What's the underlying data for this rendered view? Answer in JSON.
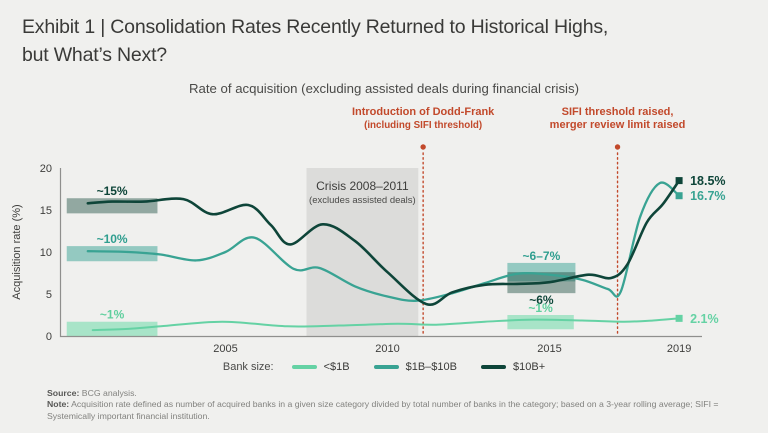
{
  "title": {
    "line1": "Exhibit 1 | Consolidation Rates Recently Returned to Historical Highs,",
    "line2": "but What’s Next?"
  },
  "chart_data": {
    "type": "line",
    "title": "Rate of acquisition (excluding assisted deals during financial crisis)",
    "ylabel": "Acquisition rate (%)",
    "ylim": [
      0,
      20
    ],
    "y_ticks": [
      0,
      5,
      10,
      15,
      20
    ],
    "x_ticks": [
      2005,
      2010,
      2015,
      2019
    ],
    "x_range": [
      2000,
      2019.8
    ],
    "grid": false,
    "legend_position": "bottom",
    "legend_label": "Bank size:",
    "background_color": "#f0f0ee",
    "event_color": "#c2492b",
    "series": [
      {
        "name": "<$1B",
        "color": "#65d2a4",
        "end_label": "2.1%",
        "points": [
          [
            2000.9,
            0.7
          ],
          [
            2002,
            0.85
          ],
          [
            2003,
            1.15
          ],
          [
            2004.9,
            1.7
          ],
          [
            2006.9,
            1.15
          ],
          [
            2008.5,
            1.25
          ],
          [
            2010.3,
            1.45
          ],
          [
            2011.5,
            1.35
          ],
          [
            2013,
            1.7
          ],
          [
            2014.5,
            1.95
          ],
          [
            2016,
            1.85
          ],
          [
            2017.3,
            1.7
          ],
          [
            2018.2,
            1.85
          ],
          [
            2019,
            2.1
          ]
        ]
      },
      {
        "name": "$1B–$10B",
        "color": "#39a393",
        "end_label": "16.7%",
        "points": [
          [
            2000.75,
            10.1
          ],
          [
            2002,
            10.0
          ],
          [
            2003,
            9.7
          ],
          [
            2004.1,
            9.0
          ],
          [
            2005,
            10.0
          ],
          [
            2005.9,
            11.7
          ],
          [
            2007.1,
            8.0
          ],
          [
            2007.9,
            8.1
          ],
          [
            2009,
            5.9
          ],
          [
            2010,
            4.7
          ],
          [
            2010.9,
            4.2
          ],
          [
            2012,
            5.1
          ],
          [
            2013,
            6.3
          ],
          [
            2014,
            7.4
          ],
          [
            2015,
            7.3
          ],
          [
            2016,
            6.7
          ],
          [
            2016.8,
            5.6
          ],
          [
            2017.2,
            5.3
          ],
          [
            2017.8,
            14.2
          ],
          [
            2018.4,
            18.2
          ],
          [
            2019,
            16.7
          ]
        ]
      },
      {
        "name": "$10B+",
        "color": "#0e4539",
        "end_label": "18.5%",
        "points": [
          [
            2000.75,
            15.8
          ],
          [
            2001.5,
            16.0
          ],
          [
            2002.5,
            16.0
          ],
          [
            2003.7,
            16.3
          ],
          [
            2004.6,
            14.5
          ],
          [
            2005.7,
            15.6
          ],
          [
            2006.4,
            13.2
          ],
          [
            2007.0,
            10.9
          ],
          [
            2008.0,
            13.3
          ],
          [
            2009.0,
            11.3
          ],
          [
            2010.0,
            7.6
          ],
          [
            2011.2,
            3.8
          ],
          [
            2012,
            5.2
          ],
          [
            2013,
            6.1
          ],
          [
            2014,
            6.2
          ],
          [
            2015,
            6.4
          ],
          [
            2016.2,
            7.3
          ],
          [
            2016.9,
            6.9
          ],
          [
            2017.4,
            8.5
          ],
          [
            2018,
            13.5
          ],
          [
            2018.5,
            15.7
          ],
          [
            2019,
            18.5
          ]
        ]
      }
    ],
    "crisis_region": {
      "label": "Crisis 2008–2011",
      "sublabel": "(excludes assisted deals)",
      "x_start": 2007.5,
      "x_end": 2010.95,
      "color": "#dcdcda"
    },
    "events": [
      {
        "label_line1": "Introduction of Dodd-Frank",
        "label_line2": "(including SIFI threshold)",
        "x": 2011.1
      },
      {
        "label_line1": "SIFI threshold raised,",
        "label_line2": "merger review limit raised",
        "x": 2017.1
      }
    ],
    "highlight_bands": [
      {
        "label": "~15%",
        "x_start": 2000.1,
        "x_end": 2002.9,
        "y_low": 14.6,
        "y_high": 16.4,
        "label_side": "above",
        "fill": "rgba(16,70,56,0.42)",
        "label_color": "#0e4539"
      },
      {
        "label": "~10%",
        "x_start": 2000.1,
        "x_end": 2002.9,
        "y_low": 8.9,
        "y_high": 10.7,
        "label_side": "above",
        "fill": "rgba(56,162,148,0.5)",
        "label_color": "#2f9e8f"
      },
      {
        "label": "~1%",
        "x_start": 2000.1,
        "x_end": 2002.9,
        "y_low": 0,
        "y_high": 1.7,
        "label_side": "above",
        "fill": "rgba(110,218,170,0.55)",
        "label_color": "#5fcf9e"
      },
      {
        "label": "~6–7%",
        "x_start": 2013.7,
        "x_end": 2015.8,
        "y_low": 6.5,
        "y_high": 8.7,
        "label_side": "above",
        "fill": "rgba(56,162,148,0.5)",
        "label_color": "#2f9e8f"
      },
      {
        "label": "~6%",
        "x_start": 2013.7,
        "x_end": 2015.8,
        "y_low": 5.1,
        "y_high": 7.6,
        "label_side": "below",
        "fill": "rgba(16,70,56,0.42)",
        "label_color": "#0e4539"
      },
      {
        "label": "~1%",
        "x_start": 2013.7,
        "x_end": 2015.75,
        "y_low": 0.8,
        "y_high": 2.5,
        "label_side": "above",
        "fill": "rgba(110,218,170,0.55)",
        "label_color": "#5fcf9e"
      }
    ]
  },
  "footer": {
    "source_label": "Source:",
    "source_text": "BCG analysis.",
    "note_label": "Note:",
    "note_text": "Acquisition rate defined as number of acquired banks in a given size category divided by total number of banks in the category; based on a 3-year rolling average; SIFI = Systemically important financial institution."
  }
}
